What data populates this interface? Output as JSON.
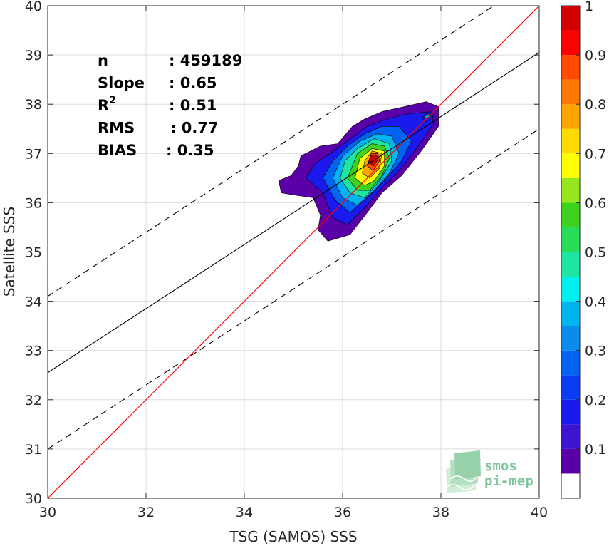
{
  "chart_data": {
    "type": "heatmap",
    "title": "",
    "xlabel": "TSG (SAMOS) SSS",
    "ylabel": "Satellite SSS",
    "xlim": [
      30,
      40
    ],
    "ylim": [
      30,
      40
    ],
    "x_ticks": [
      30,
      32,
      34,
      36,
      38,
      40
    ],
    "y_ticks": [
      30,
      31,
      32,
      33,
      34,
      35,
      36,
      37,
      38,
      39,
      40
    ],
    "grid": true,
    "stats": [
      {
        "label": "n",
        "value": ": 459189"
      },
      {
        "label": "Slope",
        "value": ": 0.65"
      },
      {
        "label": "R",
        "sup": "2",
        "value": ": 0.51"
      },
      {
        "label": "RMS",
        "value": ": 0.77"
      },
      {
        "label": "BIAS",
        "value": ": 0.35"
      }
    ],
    "lines": [
      {
        "name": "1:1",
        "color": "#ff0000",
        "style": "solid",
        "slope": 1,
        "intercept": 0
      },
      {
        "name": "fit",
        "color": "#000000",
        "style": "solid",
        "slope": 0.65,
        "intercept": 13.05
      },
      {
        "name": "upper",
        "color": "#000000",
        "style": "dashed",
        "slope": 0.65,
        "intercept": 14.6
      },
      {
        "name": "lower",
        "color": "#000000",
        "style": "dashed",
        "slope": 0.65,
        "intercept": 11.5
      }
    ],
    "density_contours": [
      {
        "level": 0.05,
        "points": [
          [
            34.7,
            36.45
          ],
          [
            34.75,
            36.2
          ],
          [
            35.05,
            36.15
          ],
          [
            35.4,
            36.1
          ],
          [
            35.55,
            35.75
          ],
          [
            35.5,
            35.45
          ],
          [
            35.7,
            35.22
          ],
          [
            36.15,
            35.35
          ],
          [
            36.5,
            35.8
          ],
          [
            36.8,
            36.2
          ],
          [
            37.2,
            36.55
          ],
          [
            37.6,
            37.05
          ],
          [
            37.95,
            37.55
          ],
          [
            37.95,
            37.95
          ],
          [
            37.7,
            38.05
          ],
          [
            37.25,
            37.95
          ],
          [
            36.8,
            37.85
          ],
          [
            36.45,
            37.7
          ],
          [
            36.2,
            37.55
          ],
          [
            35.9,
            37.2
          ],
          [
            35.55,
            37.15
          ],
          [
            35.15,
            36.95
          ],
          [
            35.1,
            36.75
          ],
          [
            34.95,
            36.55
          ]
        ]
      },
      {
        "level": 0.15,
        "points": [
          [
            35.25,
            36.5
          ],
          [
            35.6,
            36.2
          ],
          [
            35.8,
            35.7
          ],
          [
            36.1,
            35.55
          ],
          [
            36.45,
            35.9
          ],
          [
            36.8,
            36.3
          ],
          [
            37.15,
            36.65
          ],
          [
            37.5,
            37.1
          ],
          [
            37.85,
            37.6
          ],
          [
            37.8,
            37.85
          ],
          [
            37.3,
            37.8
          ],
          [
            36.9,
            37.7
          ],
          [
            36.5,
            37.55
          ],
          [
            36.1,
            37.25
          ],
          [
            35.75,
            37.0
          ],
          [
            35.45,
            36.8
          ]
        ]
      },
      {
        "level": 0.25,
        "points": [
          [
            35.6,
            36.5
          ],
          [
            35.85,
            36.05
          ],
          [
            36.15,
            35.8
          ],
          [
            36.5,
            36.1
          ],
          [
            36.85,
            36.45
          ],
          [
            37.2,
            36.85
          ],
          [
            37.4,
            37.25
          ],
          [
            37.15,
            37.55
          ],
          [
            36.8,
            37.55
          ],
          [
            36.45,
            37.4
          ],
          [
            36.1,
            37.15
          ],
          [
            35.8,
            36.85
          ]
        ]
      },
      {
        "level": 0.35,
        "points": [
          [
            35.8,
            36.5
          ],
          [
            36.0,
            36.1
          ],
          [
            36.3,
            35.95
          ],
          [
            36.65,
            36.25
          ],
          [
            36.95,
            36.6
          ],
          [
            37.15,
            37.0
          ],
          [
            37.0,
            37.35
          ],
          [
            36.7,
            37.4
          ],
          [
            36.35,
            37.25
          ],
          [
            36.0,
            36.95
          ]
        ]
      },
      {
        "level": 0.45,
        "points": [
          [
            35.95,
            36.5
          ],
          [
            36.15,
            36.2
          ],
          [
            36.45,
            36.1
          ],
          [
            36.75,
            36.45
          ],
          [
            37.0,
            36.85
          ],
          [
            36.95,
            37.2
          ],
          [
            36.65,
            37.3
          ],
          [
            36.3,
            37.1
          ],
          [
            36.05,
            36.85
          ]
        ]
      },
      {
        "level": 0.55,
        "points": [
          [
            36.1,
            36.5
          ],
          [
            36.3,
            36.25
          ],
          [
            36.55,
            36.25
          ],
          [
            36.8,
            36.55
          ],
          [
            36.95,
            36.9
          ],
          [
            36.85,
            37.15
          ],
          [
            36.6,
            37.2
          ],
          [
            36.3,
            37.0
          ]
        ]
      },
      {
        "level": 0.65,
        "points": [
          [
            36.25,
            36.5
          ],
          [
            36.45,
            36.35
          ],
          [
            36.65,
            36.45
          ],
          [
            36.85,
            36.75
          ],
          [
            36.85,
            37.05
          ],
          [
            36.6,
            37.1
          ],
          [
            36.35,
            36.9
          ]
        ]
      },
      {
        "level": 0.75,
        "points": [
          [
            36.4,
            36.6
          ],
          [
            36.55,
            36.5
          ],
          [
            36.75,
            36.7
          ],
          [
            36.8,
            37.0
          ],
          [
            36.6,
            37.05
          ],
          [
            36.45,
            36.85
          ]
        ]
      },
      {
        "level": 0.85,
        "points": [
          [
            36.5,
            36.75
          ],
          [
            36.62,
            36.65
          ],
          [
            36.75,
            36.85
          ],
          [
            36.72,
            37.0
          ],
          [
            36.58,
            37.0
          ]
        ]
      },
      {
        "level": 0.95,
        "points": [
          [
            36.53,
            36.82
          ],
          [
            36.63,
            36.75
          ],
          [
            36.72,
            36.88
          ],
          [
            36.68,
            36.98
          ],
          [
            36.57,
            36.95
          ]
        ]
      },
      {
        "level": 0.15,
        "points": [
          [
            37.6,
            37.72
          ],
          [
            37.7,
            37.65
          ],
          [
            37.85,
            37.75
          ],
          [
            37.75,
            37.85
          ]
        ]
      },
      {
        "level": 0.35,
        "points": [
          [
            37.65,
            37.73
          ],
          [
            37.72,
            37.7
          ],
          [
            37.8,
            37.76
          ],
          [
            37.74,
            37.8
          ]
        ]
      }
    ],
    "colorbar": {
      "ticks": [
        0.1,
        0.2,
        0.3,
        0.4,
        0.5,
        0.6,
        0.7,
        0.8,
        0.9,
        1
      ],
      "tick_labels": [
        "0.1",
        "0.2",
        "0.3",
        "0.4",
        "0.5",
        "0.6",
        "0.7",
        "0.8",
        "0.9",
        "1"
      ],
      "bins": [
        0,
        0.05,
        0.1,
        0.15,
        0.2,
        0.25,
        0.3,
        0.35,
        0.4,
        0.45,
        0.5,
        0.55,
        0.6,
        0.65,
        0.7,
        0.75,
        0.8,
        0.85,
        0.9,
        0.95,
        1.0
      ],
      "colors": [
        "#ffffff",
        "#5a00a8",
        "#3c14d2",
        "#1a1aef",
        "#0a3cf5",
        "#0064f0",
        "#0a8ceb",
        "#00b4f0",
        "#00f0f0",
        "#1ee6a0",
        "#28dc5a",
        "#3cd21e",
        "#96e61e",
        "#ffff00",
        "#ffdc00",
        "#ffa500",
        "#ff7800",
        "#ff4a00",
        "#ff0000",
        "#d20000",
        "#820000"
      ]
    }
  },
  "logo": {
    "line1": "smos",
    "line2": "pi-mep"
  }
}
